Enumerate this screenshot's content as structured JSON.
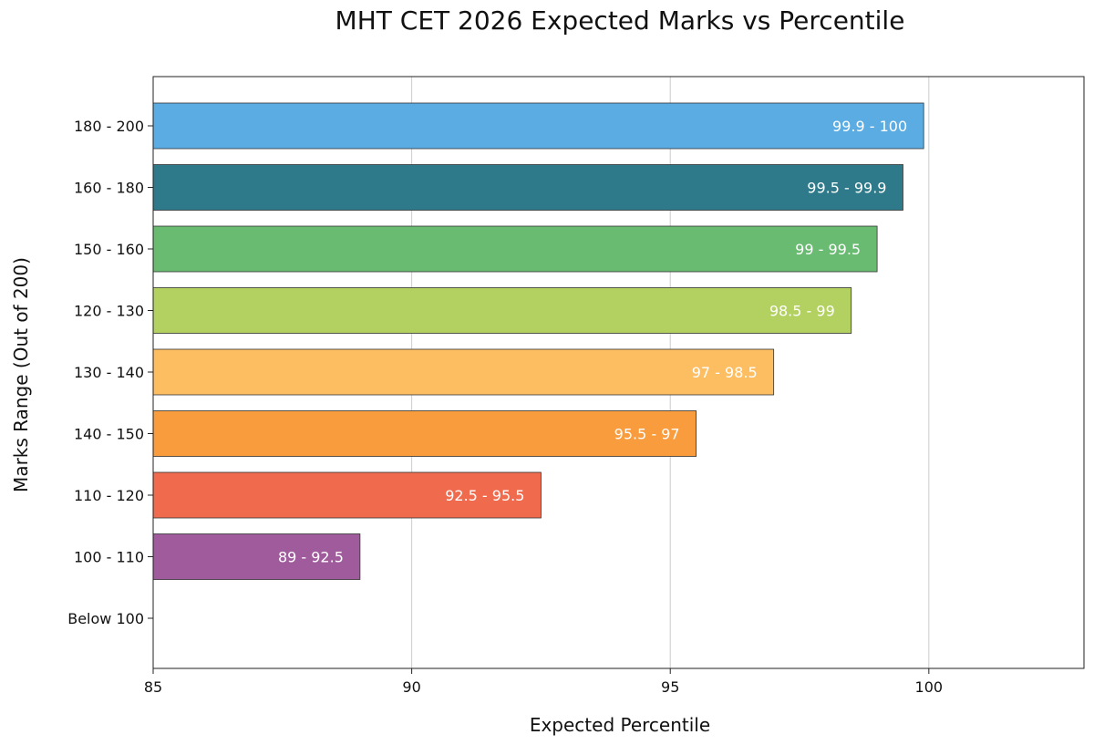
{
  "chart_data": {
    "type": "bar",
    "orientation": "horizontal",
    "title": "MHT CET 2026 Expected Marks vs Percentile",
    "xlabel": "Expected Percentile",
    "ylabel": "Marks Range (Out of 200)",
    "xlim": [
      85,
      103
    ],
    "xticks": [
      85,
      90,
      95,
      100
    ],
    "grid": "vertical",
    "categories": [
      "180 - 200",
      "160 - 180",
      "150 - 160",
      "120 - 130",
      "130 - 140",
      "140 - 150",
      "110 - 120",
      "100 - 110",
      "Below 100"
    ],
    "values": [
      99.9,
      99.5,
      99.0,
      98.5,
      97.0,
      95.5,
      92.5,
      89.0,
      null
    ],
    "labels": [
      "99.9 - 100",
      "99.5 - 99.9",
      "99 - 99.5",
      "98.5 - 99",
      "97 - 98.5",
      "95.5 - 97",
      "92.5 - 95.5",
      "89 - 92.5",
      ""
    ],
    "colors": [
      "#5aace3",
      "#2e7a8a",
      "#68bb70",
      "#b3d161",
      "#fdbe62",
      "#f89c3e",
      "#f06b4e",
      "#9f5b9b",
      "#ffffff"
    ]
  }
}
